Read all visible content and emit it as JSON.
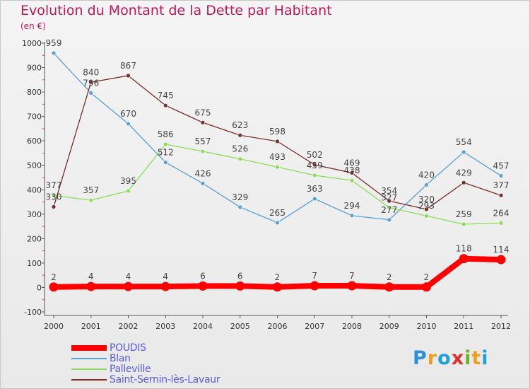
{
  "title": "Evolution du Montant de la Dette par Habitant",
  "unit": "(en €)",
  "logo": "Proxiti",
  "chart_data": {
    "type": "line",
    "title": "Evolution du Montant de la Dette par Habitant",
    "ylabel": "(en €)",
    "xlabel": "",
    "ylim": [
      -100,
      1000
    ],
    "yticks": [
      -100,
      0,
      100,
      200,
      300,
      400,
      500,
      600,
      700,
      800,
      900,
      1000
    ],
    "x": [
      "2000",
      "2001",
      "2002",
      "2003",
      "2004",
      "2005",
      "2006",
      "2007",
      "2008",
      "2009",
      "2010",
      "2011",
      "2012"
    ],
    "grid": false,
    "legend": "bottom-left",
    "series": [
      {
        "name": "POUDIS",
        "color": "#ff0000",
        "values": [
          2,
          4,
          4,
          4,
          6,
          6,
          2,
          7,
          7,
          2,
          2,
          118,
          114
        ]
      },
      {
        "name": "Blan",
        "color": "#5a9fd6",
        "values": [
          959,
          796,
          670,
          512,
          426,
          329,
          265,
          363,
          294,
          277,
          420,
          554,
          457
        ]
      },
      {
        "name": "Palleville",
        "color": "#88dd55",
        "values": [
          377,
          357,
          395,
          586,
          557,
          526,
          493,
          459,
          438,
          327,
          293,
          259,
          264
        ]
      },
      {
        "name": "Saint-Sernin-lès-Lavaur",
        "color": "#7a2d2d",
        "values": [
          330,
          840,
          867,
          745,
          675,
          623,
          598,
          502,
          469,
          354,
          320,
          429,
          377
        ]
      }
    ]
  }
}
